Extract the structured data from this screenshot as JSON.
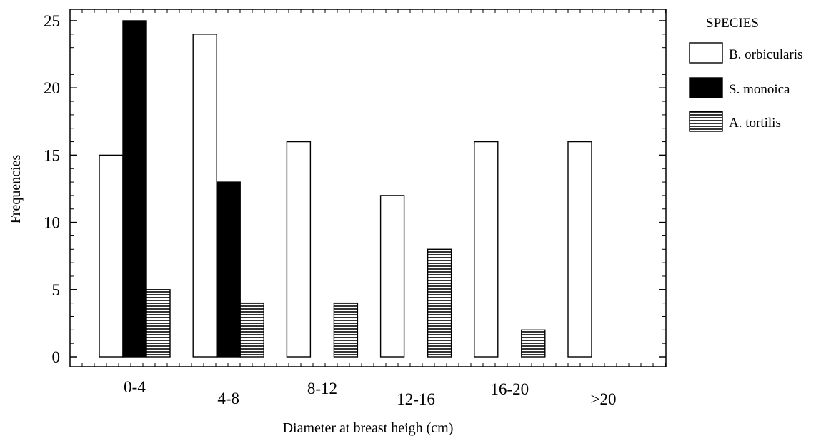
{
  "chart_data": {
    "type": "bar",
    "title": "",
    "xlabel": "Diameter at breast heigh (cm)",
    "ylabel": "Frequencies",
    "categories": [
      "0-4",
      "4-8",
      "8-12",
      "12-16",
      "16-20",
      ">20"
    ],
    "ylim": [
      0,
      25
    ],
    "yticks": [
      0,
      5,
      10,
      15,
      20,
      25
    ],
    "series": [
      {
        "name": "B. orbicularis",
        "values": [
          15,
          24,
          16,
          12,
          16,
          16
        ],
        "fill": "#ffffff"
      },
      {
        "name": "S. monoica",
        "values": [
          25,
          13,
          0,
          0,
          0,
          0
        ],
        "fill": "#000000"
      },
      {
        "name": "A. tortilis",
        "values": [
          5,
          4,
          4,
          8,
          2,
          0
        ],
        "fill": "horizontal-hatch"
      }
    ],
    "legend": {
      "title": "SPECIES",
      "position": "right"
    },
    "grid": false
  }
}
